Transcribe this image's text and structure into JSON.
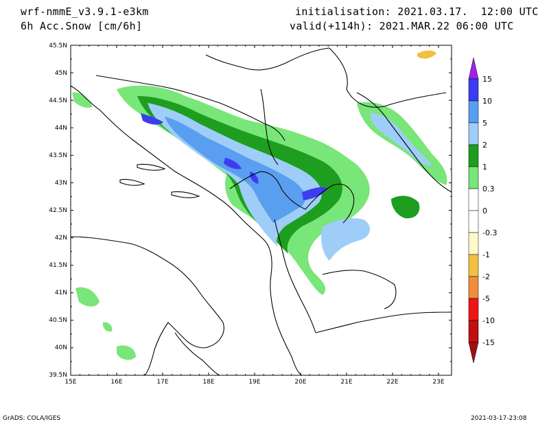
{
  "header": {
    "model": "wrf-nmmE_v3.9.1-e3km",
    "field": "6h Acc.Snow [cm/6h]",
    "init": "initialisation: 2021.03.17.  12:00 UTC",
    "valid": "valid(+114h): 2021.MAR.22 06:00 UTC"
  },
  "footer": {
    "left": "GrADS: COLA/IGES",
    "right": "2021-03-17-23:08"
  },
  "map": {
    "lat_labels": [
      "45.5N",
      "45N",
      "44.5N",
      "44N",
      "43.5N",
      "43N",
      "42.5N",
      "42N",
      "41.5N",
      "41N",
      "40.5N",
      "40N",
      "39.5N"
    ],
    "lon_labels": [
      "15E",
      "16E",
      "17E",
      "18E",
      "19E",
      "20E",
      "21E",
      "22E",
      "23E"
    ]
  },
  "colorbar": {
    "labels": [
      "15",
      "10",
      "5",
      "2",
      "1",
      "0.3",
      "0",
      "-0.3",
      "-1",
      "-2",
      "-5",
      "-10",
      "-15"
    ],
    "colors": {
      "top_arrow": "#a020f0",
      "c10_15": "#3c3cf0",
      "c5_10": "#5a9ef0",
      "c2_5": "#9ecef8",
      "c1_2": "#1e9e1e",
      "c03_1": "#78e678",
      "c0_03": "#ffffff",
      "cm03_0": "#ffffff",
      "cm1_m03": "#fff8c8",
      "cm2_m1": "#f2c040",
      "cm5_m2": "#f08c3c",
      "cm10_m5": "#f01414",
      "cm15_m10": "#c01010",
      "bottom_arrow": "#a01010"
    }
  }
}
